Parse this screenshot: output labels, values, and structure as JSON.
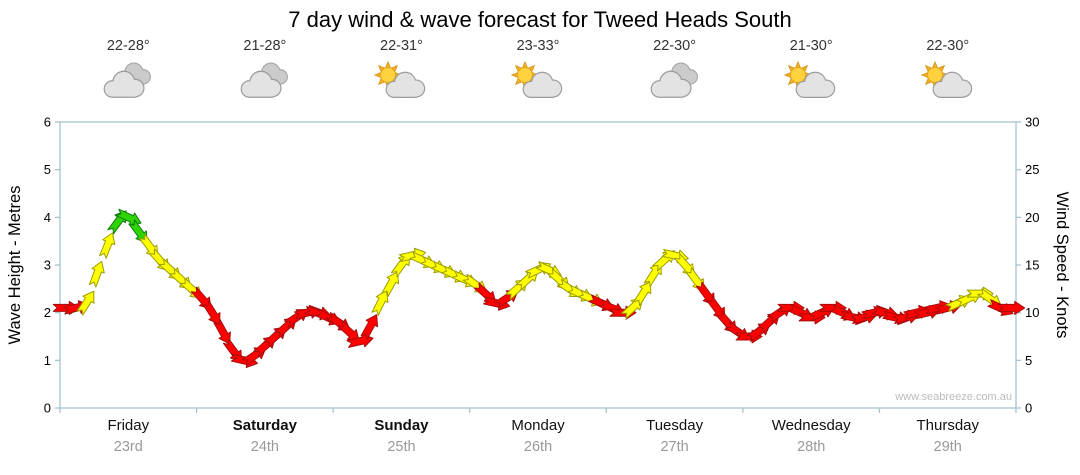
{
  "title": "7 day wind & wave forecast for Tweed Heads South",
  "watermark": "www.seabreeze.com.au",
  "colors": {
    "red": "#ff0000",
    "yellow": "#ffff00",
    "green": "#2ed300",
    "axis": "#a6c3d2"
  },
  "days": [
    {
      "name": "Friday",
      "date": "23rd",
      "temp": "22-28°",
      "icon": "cloudy",
      "bold": false
    },
    {
      "name": "Saturday",
      "date": "24th",
      "temp": "21-28°",
      "icon": "cloudy",
      "bold": true
    },
    {
      "name": "Sunday",
      "date": "25th",
      "temp": "22-31°",
      "icon": "partly-sunny",
      "bold": true
    },
    {
      "name": "Monday",
      "date": "26th",
      "temp": "23-33°",
      "icon": "partly-sunny",
      "bold": false
    },
    {
      "name": "Tuesday",
      "date": "27th",
      "temp": "22-30°",
      "icon": "cloudy",
      "bold": false
    },
    {
      "name": "Wednesday",
      "date": "28th",
      "temp": "21-30°",
      "icon": "partly-sunny",
      "bold": false
    },
    {
      "name": "Thursday",
      "date": "29th",
      "temp": "22-30°",
      "icon": "partly-sunny",
      "bold": false
    }
  ],
  "axes": {
    "left_label": "Wave Height - Metres",
    "right_label": "Wind Speed - Knots",
    "left_ticks": [
      0,
      1,
      2,
      3,
      4,
      5,
      6
    ],
    "right_ticks": [
      0,
      5,
      10,
      15,
      20,
      25,
      30
    ],
    "metres_max": 6,
    "knots_max": 30
  },
  "chart_data": {
    "type": "wind-arrows",
    "title": "7 day wind & wave forecast for Tweed Heads South",
    "categories": [
      "Friday 23rd",
      "Saturday 24th",
      "Sunday 25th",
      "Monday 26th",
      "Tuesday 27th",
      "Wednesday 28th",
      "Thursday 29th"
    ],
    "points_per_day": 13,
    "ylim_knots": [
      0,
      30
    ],
    "ylim_metres": [
      0,
      6
    ],
    "knots_by_day": [
      [
        10.5,
        10.5,
        11,
        14,
        17,
        19.5,
        20,
        18.5,
        17,
        15.5,
        14.5,
        13.5,
        12.5
      ],
      [
        11.5,
        10,
        8,
        6,
        5,
        5.5,
        6.5,
        7.5,
        8.5,
        9.5,
        10,
        10,
        9.5
      ],
      [
        9,
        8,
        7,
        8.5,
        11,
        13,
        15,
        16,
        15.5,
        15,
        14.5,
        14,
        13.5
      ],
      [
        13,
        12,
        11,
        11.5,
        12.5,
        13.5,
        14.5,
        14.5,
        13.5,
        12.5,
        12,
        11.5,
        11
      ],
      [
        10.5,
        10,
        10.5,
        12,
        14,
        15.5,
        16,
        15,
        13.5,
        12,
        10.5,
        9,
        8
      ],
      [
        7.5,
        8,
        9,
        10,
        10.5,
        10,
        9.5,
        10,
        10.5,
        10,
        9.5,
        9.5,
        10
      ],
      [
        10,
        9.5,
        9.5,
        10,
        10,
        10.5,
        10.5,
        11,
        11.5,
        12,
        11.5,
        10.5,
        10.5
      ]
    ],
    "colors_by_day": [
      "rryyygggyyyyy",
      "rrrrrrrrrrrrr",
      "rrrryyyyyyyyy",
      "yrrryyyyyyyyr",
      "rryyyyyyyrrrr",
      "rrrrrrrrrrrrr",
      "rrrrrrryyyyrr"
    ]
  }
}
